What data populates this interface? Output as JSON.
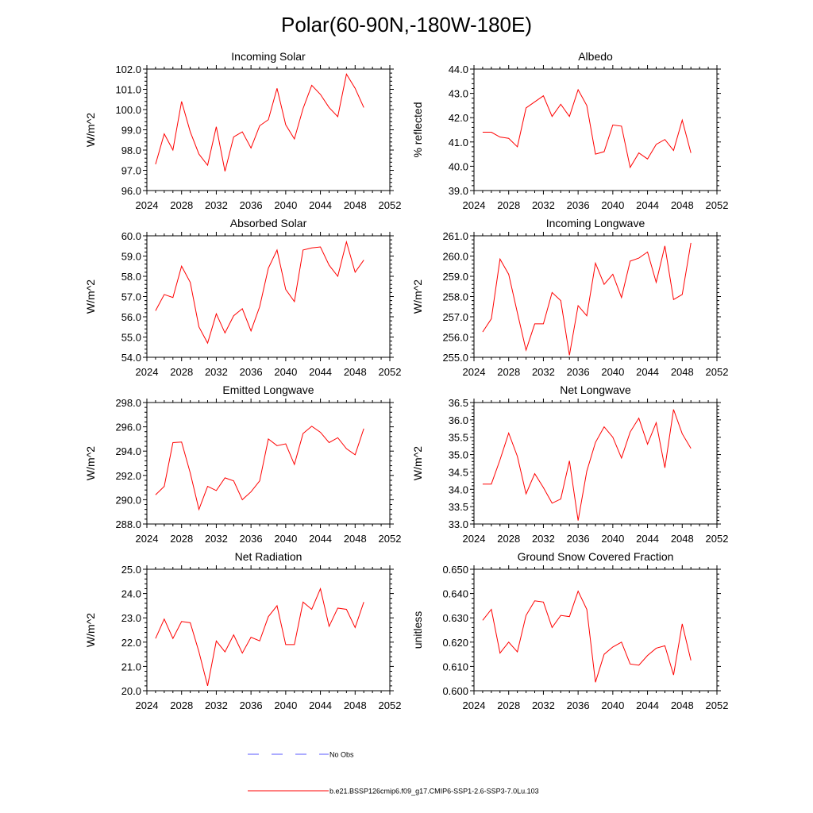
{
  "title": "Polar(60-90N,-180W-180E)",
  "colors": {
    "model": "#ff0000",
    "obs": "#5a5aff",
    "axis": "#000000"
  },
  "legend": {
    "obs_label": "No Obs",
    "model_label": "b.e21.BSSP126cmip6.f09_g17.CMIP6-SSP1-2.6-SSP3-7.0Lu.103"
  },
  "chart_data": [
    {
      "type": "line",
      "title": "Incoming Solar",
      "ylabel": "W/m^2",
      "xlabel": "",
      "xlim": [
        2024,
        2052
      ],
      "xticks": [
        2024,
        2028,
        2032,
        2036,
        2040,
        2044,
        2048,
        2052
      ],
      "ylim": [
        96.0,
        102.0
      ],
      "yticks": [
        "96.0",
        "97.0",
        "98.0",
        "99.0",
        "100.0",
        "101.0",
        "102.0"
      ],
      "x": [
        2025,
        2026,
        2027,
        2028,
        2029,
        2030,
        2031,
        2032,
        2033,
        2034,
        2035,
        2036,
        2037,
        2038,
        2039,
        2040,
        2041,
        2042,
        2043,
        2044,
        2045,
        2046,
        2047,
        2048,
        2049
      ],
      "series": [
        {
          "name": "b.e21.BSSP126cmip6.f09_g17.CMIP6-SSP1-2.6-SSP3-7.0Lu.103",
          "values": [
            97.3,
            98.8,
            98.0,
            100.4,
            98.9,
            97.8,
            97.25,
            99.15,
            96.95,
            98.65,
            98.9,
            98.1,
            99.2,
            99.5,
            101.05,
            99.25,
            98.55,
            100.05,
            101.2,
            100.75,
            100.1,
            99.65,
            101.75,
            101.05,
            100.1
          ]
        }
      ]
    },
    {
      "type": "line",
      "title": "Albedo",
      "ylabel": "% reflected",
      "xlabel": "",
      "xlim": [
        2024,
        2052
      ],
      "xticks": [
        2024,
        2028,
        2032,
        2036,
        2040,
        2044,
        2048,
        2052
      ],
      "ylim": [
        39.0,
        44.0
      ],
      "yticks": [
        "39.0",
        "40.0",
        "41.0",
        "42.0",
        "43.0",
        "44.0"
      ],
      "x": [
        2025,
        2026,
        2027,
        2028,
        2029,
        2030,
        2031,
        2032,
        2033,
        2034,
        2035,
        2036,
        2037,
        2038,
        2039,
        2040,
        2041,
        2042,
        2043,
        2044,
        2045,
        2046,
        2047,
        2048,
        2049
      ],
      "series": [
        {
          "name": "b.e21.BSSP126cmip6.f09_g17.CMIP6-SSP1-2.6-SSP3-7.0Lu.103",
          "values": [
            41.4,
            41.4,
            41.2,
            41.15,
            40.8,
            42.4,
            42.65,
            42.9,
            42.05,
            42.55,
            42.05,
            43.15,
            42.5,
            40.5,
            40.6,
            41.7,
            41.65,
            39.95,
            40.55,
            40.3,
            40.9,
            41.1,
            40.65,
            41.9,
            40.55
          ]
        }
      ]
    },
    {
      "type": "line",
      "title": "Absorbed Solar",
      "ylabel": "W/m^2",
      "xlabel": "",
      "xlim": [
        2024,
        2052
      ],
      "xticks": [
        2024,
        2028,
        2032,
        2036,
        2040,
        2044,
        2048,
        2052
      ],
      "ylim": [
        54.0,
        60.0
      ],
      "yticks": [
        "54.0",
        "55.0",
        "56.0",
        "57.0",
        "58.0",
        "59.0",
        "60.0"
      ],
      "x": [
        2025,
        2026,
        2027,
        2028,
        2029,
        2030,
        2031,
        2032,
        2033,
        2034,
        2035,
        2036,
        2037,
        2038,
        2039,
        2040,
        2041,
        2042,
        2043,
        2044,
        2045,
        2046,
        2047,
        2048,
        2049
      ],
      "series": [
        {
          "name": "b.e21.BSSP126cmip6.f09_g17.CMIP6-SSP1-2.6-SSP3-7.0Lu.103",
          "values": [
            56.3,
            57.1,
            56.95,
            58.5,
            57.7,
            55.5,
            54.7,
            56.15,
            55.2,
            56.05,
            56.4,
            55.3,
            56.5,
            58.4,
            59.3,
            57.35,
            56.75,
            59.3,
            59.4,
            59.45,
            58.55,
            58.0,
            59.7,
            58.2,
            58.8
          ]
        }
      ]
    },
    {
      "type": "line",
      "title": "Incoming Longwave",
      "ylabel": "W/m^2",
      "xlabel": "",
      "xlim": [
        2024,
        2052
      ],
      "xticks": [
        2024,
        2028,
        2032,
        2036,
        2040,
        2044,
        2048,
        2052
      ],
      "ylim": [
        255.0,
        261.0
      ],
      "yticks": [
        "255.0",
        "256.0",
        "257.0",
        "258.0",
        "259.0",
        "260.0",
        "261.0"
      ],
      "x": [
        2025,
        2026,
        2027,
        2028,
        2029,
        2030,
        2031,
        2032,
        2033,
        2034,
        2035,
        2036,
        2037,
        2038,
        2039,
        2040,
        2041,
        2042,
        2043,
        2044,
        2045,
        2046,
        2047,
        2048,
        2049
      ],
      "series": [
        {
          "name": "b.e21.BSSP126cmip6.f09_g17.CMIP6-SSP1-2.6-SSP3-7.0Lu.103",
          "values": [
            256.25,
            256.9,
            259.85,
            259.1,
            257.2,
            255.35,
            256.65,
            256.65,
            258.2,
            257.8,
            255.1,
            257.55,
            257.05,
            259.65,
            258.6,
            259.1,
            257.95,
            259.75,
            259.9,
            260.2,
            258.7,
            260.5,
            257.85,
            258.1,
            260.65
          ]
        }
      ]
    },
    {
      "type": "line",
      "title": "Emitted Longwave",
      "ylabel": "W/m^2",
      "xlabel": "",
      "xlim": [
        2024,
        2052
      ],
      "xticks": [
        2024,
        2028,
        2032,
        2036,
        2040,
        2044,
        2048,
        2052
      ],
      "ylim": [
        288.0,
        298.0
      ],
      "yticks": [
        "288.0",
        "290.0",
        "292.0",
        "294.0",
        "296.0",
        "298.0"
      ],
      "x": [
        2025,
        2026,
        2027,
        2028,
        2029,
        2030,
        2031,
        2032,
        2033,
        2034,
        2035,
        2036,
        2037,
        2038,
        2039,
        2040,
        2041,
        2042,
        2043,
        2044,
        2045,
        2046,
        2047,
        2048,
        2049
      ],
      "series": [
        {
          "name": "b.e21.BSSP126cmip6.f09_g17.CMIP6-SSP1-2.6-SSP3-7.0Lu.103",
          "values": [
            290.4,
            291.1,
            294.7,
            294.75,
            292.2,
            289.2,
            291.1,
            290.75,
            291.8,
            291.55,
            290.0,
            290.65,
            291.55,
            295.0,
            294.45,
            294.6,
            292.9,
            295.45,
            296.05,
            295.55,
            294.7,
            295.1,
            294.2,
            293.7,
            295.85
          ]
        }
      ]
    },
    {
      "type": "line",
      "title": "Net Longwave",
      "ylabel": "W/m^2",
      "xlabel": "",
      "xlim": [
        2024,
        2052
      ],
      "xticks": [
        2024,
        2028,
        2032,
        2036,
        2040,
        2044,
        2048,
        2052
      ],
      "ylim": [
        33.0,
        36.5
      ],
      "yticks": [
        "33.0",
        "33.5",
        "34.0",
        "34.5",
        "35.0",
        "35.5",
        "36.0",
        "36.5"
      ],
      "x": [
        2025,
        2026,
        2027,
        2028,
        2029,
        2030,
        2031,
        2032,
        2033,
        2034,
        2035,
        2036,
        2037,
        2038,
        2039,
        2040,
        2041,
        2042,
        2043,
        2044,
        2045,
        2046,
        2047,
        2048,
        2049
      ],
      "series": [
        {
          "name": "b.e21.BSSP126cmip6.f09_g17.CMIP6-SSP1-2.6-SSP3-7.0Lu.103",
          "values": [
            34.15,
            34.15,
            34.85,
            35.62,
            34.95,
            33.87,
            34.45,
            34.05,
            33.6,
            33.72,
            34.82,
            33.1,
            34.52,
            35.35,
            35.8,
            35.5,
            34.9,
            35.65,
            36.05,
            35.3,
            35.92,
            34.62,
            36.3,
            35.6,
            35.18
          ]
        }
      ]
    },
    {
      "type": "line",
      "title": "Net Radiation",
      "ylabel": "W/m^2",
      "xlabel": "",
      "xlim": [
        2024,
        2052
      ],
      "xticks": [
        2024,
        2028,
        2032,
        2036,
        2040,
        2044,
        2048,
        2052
      ],
      "ylim": [
        20.0,
        25.0
      ],
      "yticks": [
        "20.0",
        "21.0",
        "22.0",
        "23.0",
        "24.0",
        "25.0"
      ],
      "x": [
        2025,
        2026,
        2027,
        2028,
        2029,
        2030,
        2031,
        2032,
        2033,
        2034,
        2035,
        2036,
        2037,
        2038,
        2039,
        2040,
        2041,
        2042,
        2043,
        2044,
        2045,
        2046,
        2047,
        2048,
        2049
      ],
      "series": [
        {
          "name": "b.e21.BSSP126cmip6.f09_g17.CMIP6-SSP1-2.6-SSP3-7.0Lu.103",
          "values": [
            22.15,
            22.95,
            22.15,
            22.85,
            22.8,
            21.6,
            20.2,
            22.05,
            21.6,
            22.3,
            21.55,
            22.2,
            22.05,
            23.05,
            23.5,
            21.9,
            21.9,
            23.65,
            23.35,
            24.2,
            22.65,
            23.4,
            23.35,
            22.6,
            23.65
          ]
        }
      ]
    },
    {
      "type": "line",
      "title": "Ground Snow Covered Fraction",
      "ylabel": "unitless",
      "xlabel": "",
      "xlim": [
        2024,
        2052
      ],
      "xticks": [
        2024,
        2028,
        2032,
        2036,
        2040,
        2044,
        2048,
        2052
      ],
      "ylim": [
        0.6,
        0.65
      ],
      "yticks": [
        "0.600",
        "0.610",
        "0.620",
        "0.630",
        "0.640",
        "0.650"
      ],
      "x": [
        2025,
        2026,
        2027,
        2028,
        2029,
        2030,
        2031,
        2032,
        2033,
        2034,
        2035,
        2036,
        2037,
        2038,
        2039,
        2040,
        2041,
        2042,
        2043,
        2044,
        2045,
        2046,
        2047,
        2048,
        2049
      ],
      "series": [
        {
          "name": "b.e21.BSSP126cmip6.f09_g17.CMIP6-SSP1-2.6-SSP3-7.0Lu.103",
          "values": [
            0.629,
            0.6335,
            0.6155,
            0.62,
            0.616,
            0.631,
            0.637,
            0.6365,
            0.626,
            0.631,
            0.6305,
            0.641,
            0.6335,
            0.6035,
            0.615,
            0.618,
            0.62,
            0.611,
            0.6105,
            0.6145,
            0.6175,
            0.6185,
            0.6065,
            0.6275,
            0.6125
          ]
        }
      ]
    }
  ]
}
